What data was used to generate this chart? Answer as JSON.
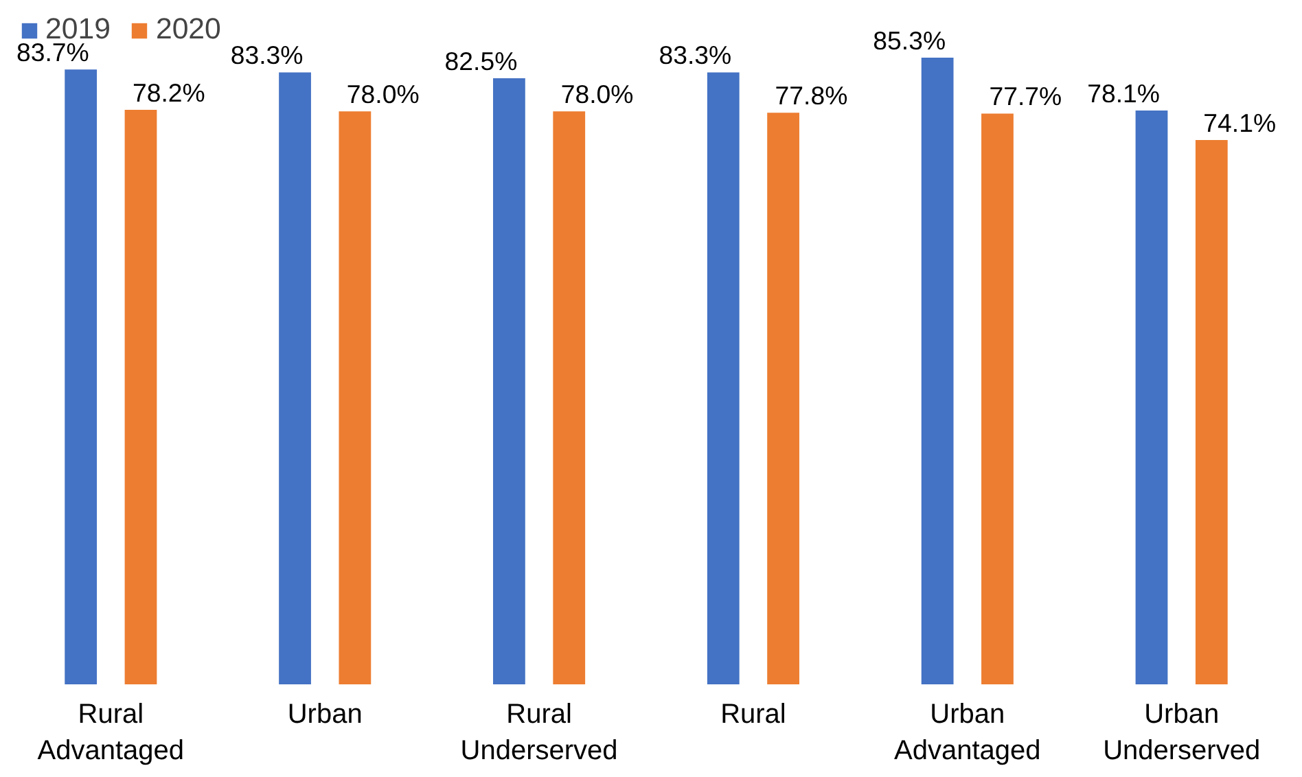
{
  "chart_data": {
    "type": "bar",
    "categories": [
      "Rural\nAdvantaged",
      "Urban",
      "Rural\nUnderserved",
      "Rural",
      "Urban\nAdvantaged",
      "Urban\nUnderserved"
    ],
    "series": [
      {
        "name": "2019",
        "color": "#4472c4",
        "values": [
          83.7,
          83.3,
          82.5,
          83.3,
          85.3,
          78.1
        ],
        "value_labels": [
          "83.7%",
          "83.3%",
          "82.5%",
          "83.3%",
          "85.3%",
          "78.1%"
        ]
      },
      {
        "name": "2020",
        "color": "#ed7d31",
        "values": [
          78.2,
          78.0,
          78.0,
          77.8,
          77.7,
          74.1
        ],
        "value_labels": [
          "78.2%",
          "78.0%",
          "78.0%",
          "77.8%",
          "77.7%",
          "74.1%"
        ]
      }
    ],
    "legend": "top left",
    "grid": false
  }
}
